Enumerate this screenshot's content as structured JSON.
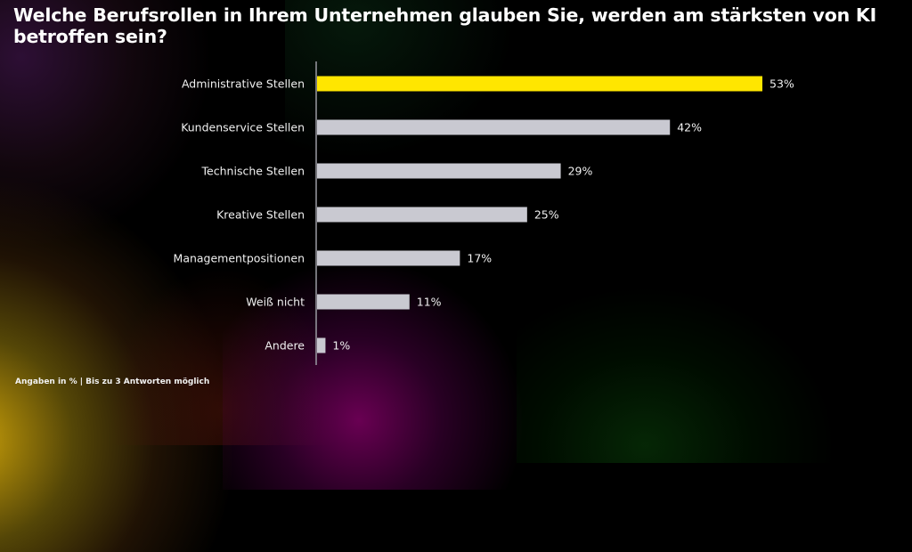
{
  "title": "Welche Berufsrollen in Ihrem Unternehmen glauben Sie, werden am stärksten von KI betroffen sein?",
  "footnote": "Angaben in % | Bis zu 3 Antworten möglich",
  "colors": {
    "highlight": "#ffe600",
    "bar": "#c9c9d1",
    "axis": "#9a9aa2",
    "text": "#f0f0f0",
    "background": "#000000"
  },
  "chart_data": {
    "type": "bar",
    "orientation": "horizontal",
    "title": "Welche Berufsrollen in Ihrem Unternehmen glauben Sie, werden am stärksten von KI betroffen sein?",
    "xlabel": "",
    "ylabel": "",
    "unit": "%",
    "xlim": [
      0,
      53
    ],
    "grid": false,
    "legend": null,
    "categories": [
      "Administrative Stellen",
      "Kundenservice Stellen",
      "Technische Stellen",
      "Kreative Stellen",
      "Managementpositionen",
      "Weiß nicht",
      "Andere"
    ],
    "values": [
      53,
      42,
      29,
      25,
      17,
      11,
      1
    ],
    "value_labels": [
      "53%",
      "42%",
      "29%",
      "25%",
      "17%",
      "11%",
      "1%"
    ],
    "highlighted": [
      true,
      false,
      false,
      false,
      false,
      false,
      false
    ],
    "annotation": "Angaben in % | Bis zu 3 Antworten möglich"
  }
}
